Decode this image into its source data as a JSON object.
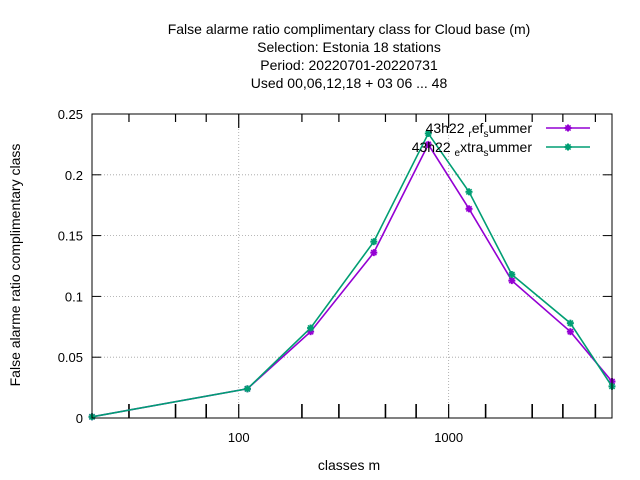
{
  "chart_data": {
    "type": "line",
    "title_lines": [
      "False alarme ratio complimentary class  for Cloud base (m)",
      "Selection: Estonia      18 stations",
      "Period: 20220701-20220731",
      "Used  00,06,12,18  + 03 06 ... 48"
    ],
    "xlabel": "classes m",
    "ylabel": "False alarme ratio complimentary class",
    "x_scale": "log",
    "xlim": [
      20,
      6000
    ],
    "ylim": [
      0,
      0.25
    ],
    "x_ticks": [
      {
        "value": 100,
        "label": "100"
      },
      {
        "value": 1000,
        "label": "1000"
      }
    ],
    "x_minor_ticks": [
      30,
      50,
      70,
      200,
      300,
      500,
      700,
      1500,
      2500,
      3500,
      5000
    ],
    "y_ticks": [
      {
        "value": 0,
        "label": "0"
      },
      {
        "value": 0.05,
        "label": "0.05"
      },
      {
        "value": 0.1,
        "label": "0.1"
      },
      {
        "value": 0.15,
        "label": "0.15"
      },
      {
        "value": 0.2,
        "label": "0.2"
      },
      {
        "value": 0.25,
        "label": "0.25"
      }
    ],
    "grid": true,
    "legend_position": "top-right",
    "series": [
      {
        "legend_parts": [
          "43h22 ",
          "r",
          "ef",
          "s",
          "ummer"
        ],
        "color": "#9400d3",
        "x": [
          20,
          110,
          220,
          440,
          800,
          1250,
          2000,
          3800,
          6000
        ],
        "y": [
          0.001,
          0.024,
          0.071,
          0.136,
          0.225,
          0.172,
          0.113,
          0.071,
          0.03
        ]
      },
      {
        "legend_parts": [
          "43h22 ",
          "e",
          "xtra",
          "s",
          "ummer"
        ],
        "color": "#009e73",
        "x": [
          20,
          110,
          220,
          440,
          800,
          1250,
          2000,
          3800,
          6000
        ],
        "y": [
          0.001,
          0.024,
          0.074,
          0.145,
          0.234,
          0.186,
          0.118,
          0.078,
          0.026
        ]
      }
    ]
  }
}
